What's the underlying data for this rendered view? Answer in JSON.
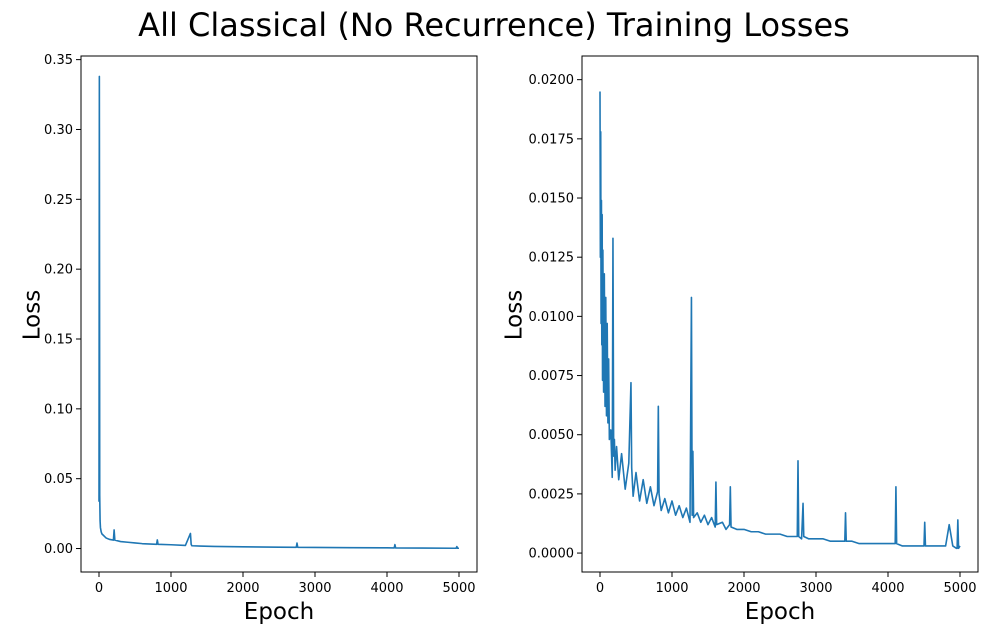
{
  "figure": {
    "title": "All Classical (No Recurrence) Training Losses",
    "line_color": "#1f77b4"
  },
  "chart_data": [
    {
      "type": "line",
      "title": "",
      "xlabel": "Epoch",
      "ylabel": "Loss",
      "xlim": [
        -250,
        5250
      ],
      "ylim": [
        -0.0168,
        0.3526
      ],
      "xticks": [
        0,
        1000,
        2000,
        3000,
        4000,
        5000
      ],
      "xtick_labels": [
        "0",
        "1000",
        "2000",
        "3000",
        "4000",
        "5000"
      ],
      "yticks": [
        0.0,
        0.05,
        0.1,
        0.15,
        0.2,
        0.25,
        0.3,
        0.35
      ],
      "ytick_labels": [
        "0.00",
        "0.05",
        "0.10",
        "0.15",
        "0.20",
        "0.25",
        "0.30",
        "0.35"
      ],
      "grid": false,
      "series": [
        {
          "x": [
            0,
            5,
            10,
            15,
            20,
            30,
            40,
            60,
            80,
            100,
            150,
            200,
            210,
            220,
            300,
            400,
            500,
            600,
            800,
            810,
            820,
            1000,
            1200,
            1270,
            1280,
            1290,
            1400,
            1600,
            2000,
            2500,
            2740,
            2750,
            2760,
            3000,
            3500,
            4000,
            4100,
            4110,
            4120,
            4500,
            4960,
            4970,
            4980,
            5000
          ],
          "y": [
            0.0335,
            0.338,
            0.038,
            0.02,
            0.015,
            0.012,
            0.0105,
            0.0095,
            0.0085,
            0.0075,
            0.0065,
            0.006,
            0.0133,
            0.006,
            0.005,
            0.0045,
            0.004,
            0.0035,
            0.003,
            0.0062,
            0.003,
            0.0027,
            0.0022,
            0.0108,
            0.003,
            0.002,
            0.0018,
            0.0015,
            0.0012,
            0.001,
            0.0009,
            0.0039,
            0.0009,
            0.0008,
            0.0006,
            0.0005,
            0.0004,
            0.0028,
            0.0004,
            0.0003,
            0.0002,
            0.0014,
            0.0002,
            0.0002
          ]
        }
      ]
    },
    {
      "type": "line",
      "title": "",
      "xlabel": "Epoch",
      "ylabel": "Loss",
      "xlim": [
        -250,
        5250
      ],
      "ylim": [
        -0.0008,
        0.021
      ],
      "xticks": [
        0,
        1000,
        2000,
        3000,
        4000,
        5000
      ],
      "xtick_labels": [
        "0",
        "1000",
        "2000",
        "3000",
        "4000",
        "5000"
      ],
      "yticks": [
        0.0,
        0.0025,
        0.005,
        0.0075,
        0.01,
        0.0125,
        0.015,
        0.0175,
        0.02
      ],
      "ytick_labels": [
        "0.0000",
        "0.0025",
        "0.0050",
        "0.0075",
        "0.0100",
        "0.0125",
        "0.0150",
        "0.0175",
        "0.0200"
      ],
      "grid": false,
      "series": [
        {
          "x": [
            0,
            5,
            10,
            15,
            20,
            25,
            30,
            35,
            40,
            50,
            60,
            70,
            80,
            90,
            100,
            110,
            120,
            130,
            150,
            170,
            180,
            190,
            200,
            210,
            230,
            260,
            300,
            350,
            400,
            430,
            440,
            460,
            500,
            550,
            600,
            650,
            700,
            750,
            800,
            810,
            820,
            850,
            900,
            950,
            1000,
            1050,
            1100,
            1150,
            1200,
            1250,
            1270,
            1280,
            1290,
            1300,
            1350,
            1400,
            1450,
            1500,
            1550,
            1600,
            1610,
            1620,
            1700,
            1750,
            1800,
            1810,
            1820,
            1900,
            2000,
            2100,
            2200,
            2300,
            2400,
            2500,
            2600,
            2700,
            2740,
            2750,
            2760,
            2800,
            2820,
            2830,
            2900,
            3000,
            3100,
            3200,
            3300,
            3400,
            3410,
            3420,
            3500,
            3600,
            3700,
            3800,
            3900,
            4000,
            4100,
            4110,
            4120,
            4200,
            4300,
            4400,
            4500,
            4510,
            4520,
            4600,
            4700,
            4800,
            4850,
            4900,
            4950,
            4960,
            4970,
            4980,
            5000
          ],
          "y": [
            0.0195,
            0.0125,
            0.0178,
            0.0097,
            0.0149,
            0.0088,
            0.0143,
            0.0073,
            0.0128,
            0.0068,
            0.0118,
            0.0062,
            0.0108,
            0.0058,
            0.0097,
            0.0055,
            0.0082,
            0.0048,
            0.0052,
            0.0032,
            0.0133,
            0.0041,
            0.0048,
            0.0035,
            0.0045,
            0.0031,
            0.0042,
            0.0027,
            0.0038,
            0.0072,
            0.0036,
            0.0024,
            0.0034,
            0.0022,
            0.0031,
            0.0021,
            0.0028,
            0.002,
            0.0026,
            0.0062,
            0.0025,
            0.0018,
            0.0023,
            0.0017,
            0.0022,
            0.0016,
            0.002,
            0.0015,
            0.0019,
            0.0013,
            0.0108,
            0.0016,
            0.0043,
            0.0015,
            0.0017,
            0.0013,
            0.0016,
            0.0012,
            0.0015,
            0.0011,
            0.003,
            0.0012,
            0.0013,
            0.001,
            0.0012,
            0.0028,
            0.0011,
            0.001,
            0.001,
            0.0009,
            0.0009,
            0.0008,
            0.0008,
            0.0008,
            0.0007,
            0.0007,
            0.0007,
            0.0039,
            0.0007,
            0.0006,
            0.0021,
            0.0007,
            0.0006,
            0.0006,
            0.0006,
            0.0005,
            0.0005,
            0.0005,
            0.0017,
            0.0005,
            0.0005,
            0.0004,
            0.0004,
            0.0004,
            0.0004,
            0.0004,
            0.0004,
            0.0028,
            0.0004,
            0.0003,
            0.0003,
            0.0003,
            0.0003,
            0.0013,
            0.0003,
            0.0003,
            0.0003,
            0.0003,
            0.0012,
            0.0003,
            0.0002,
            0.0002,
            0.0014,
            0.0002,
            0.0003
          ]
        }
      ]
    }
  ]
}
